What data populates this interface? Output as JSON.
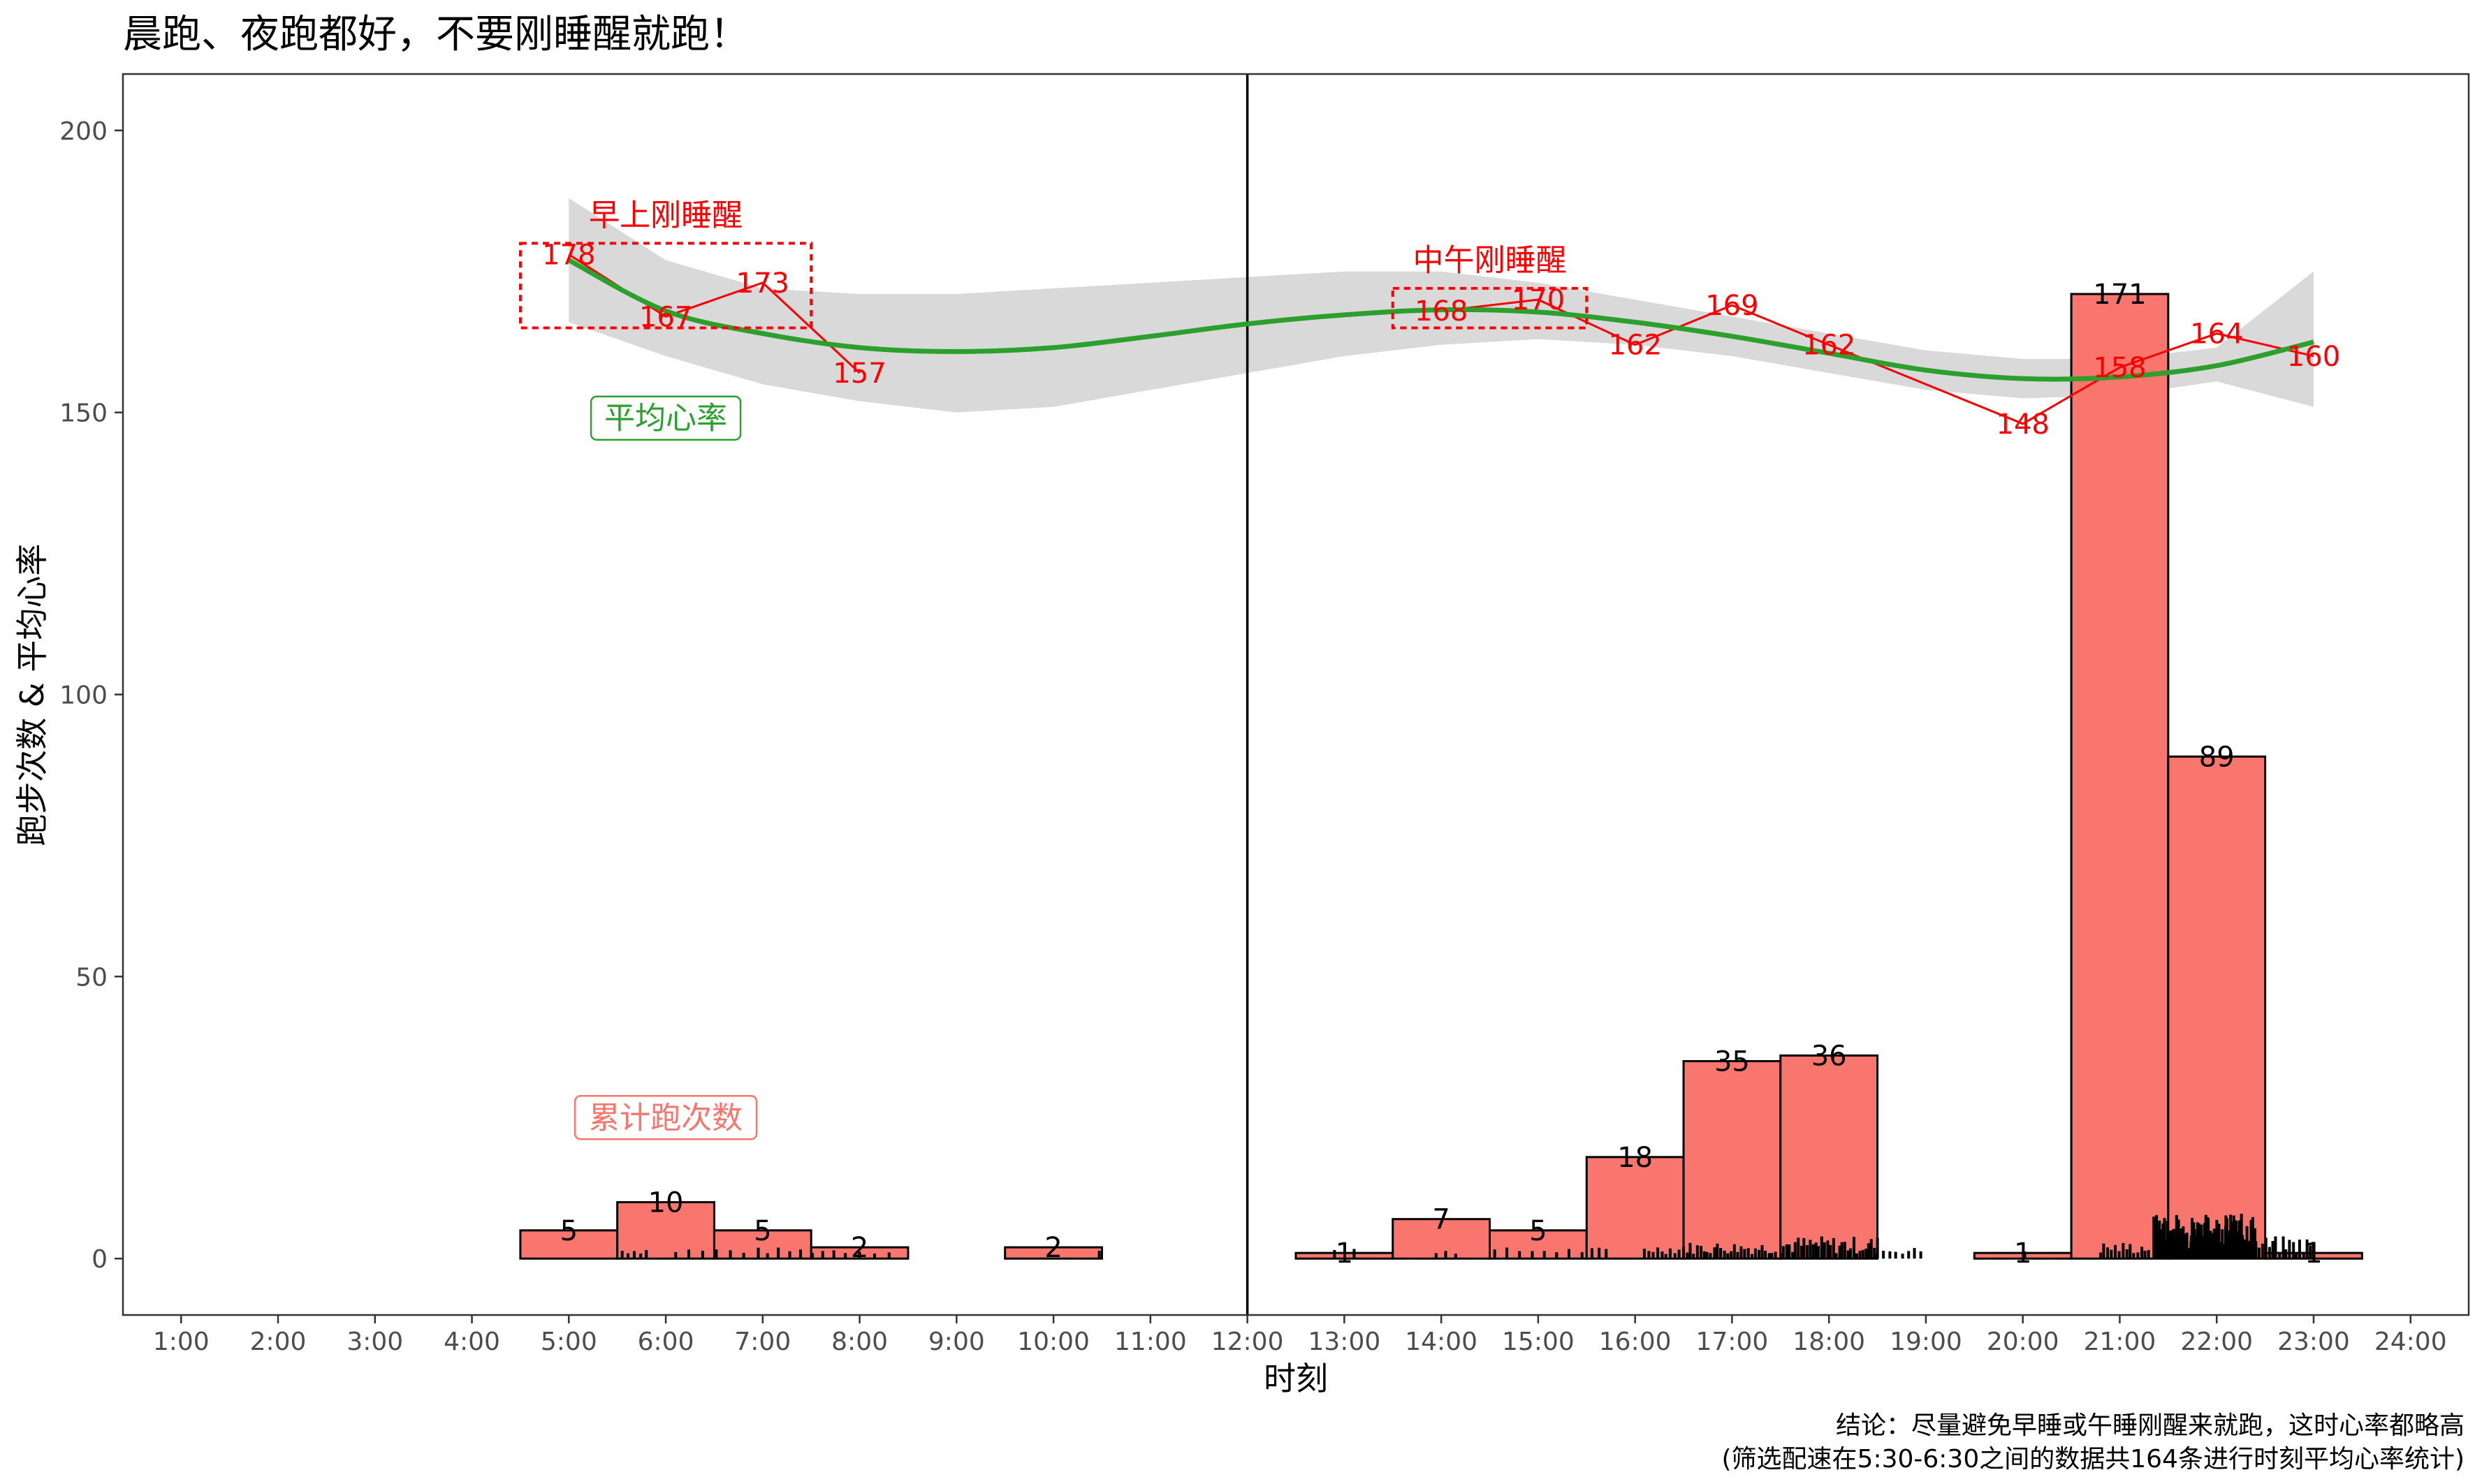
{
  "chart_data": {
    "type": "bar",
    "title": "晨跑、夜跑都好，不要刚睡醒就跑！",
    "xlabel": "时刻",
    "ylabel": "跑步次数 & 平均心率",
    "xlim": [
      0.4,
      24.6
    ],
    "ylim": [
      -10,
      210
    ],
    "x_ticks": [
      {
        "x": 1,
        "label": "1:00"
      },
      {
        "x": 2,
        "label": "2:00"
      },
      {
        "x": 3,
        "label": "3:00"
      },
      {
        "x": 4,
        "label": "4:00"
      },
      {
        "x": 5,
        "label": "5:00"
      },
      {
        "x": 6,
        "label": "6:00"
      },
      {
        "x": 7,
        "label": "7:00"
      },
      {
        "x": 8,
        "label": "8:00"
      },
      {
        "x": 9,
        "label": "9:00"
      },
      {
        "x": 10,
        "label": "10:00"
      },
      {
        "x": 11,
        "label": "11:00"
      },
      {
        "x": 12,
        "label": "12:00"
      },
      {
        "x": 13,
        "label": "13:00"
      },
      {
        "x": 14,
        "label": "14:00"
      },
      {
        "x": 15,
        "label": "15:00"
      },
      {
        "x": 16,
        "label": "16:00"
      },
      {
        "x": 17,
        "label": "17:00"
      },
      {
        "x": 18,
        "label": "18:00"
      },
      {
        "x": 19,
        "label": "19:00"
      },
      {
        "x": 20,
        "label": "20:00"
      },
      {
        "x": 21,
        "label": "21:00"
      },
      {
        "x": 22,
        "label": "22:00"
      },
      {
        "x": 23,
        "label": "23:00"
      },
      {
        "x": 24,
        "label": "24:00"
      }
    ],
    "y_ticks": [
      {
        "y": 0,
        "label": "0"
      },
      {
        "y": 50,
        "label": "50"
      },
      {
        "y": 100,
        "label": "100"
      },
      {
        "y": 150,
        "label": "150"
      },
      {
        "y": 200,
        "label": "200"
      }
    ],
    "grid": false,
    "series": [
      {
        "name": "累计跑次数",
        "type": "bar",
        "color": "#f8766d",
        "bars": [
          {
            "x": 5,
            "value": 5,
            "label": "5"
          },
          {
            "x": 6,
            "value": 10,
            "label": "10"
          },
          {
            "x": 7,
            "value": 5,
            "label": "5"
          },
          {
            "x": 8,
            "value": 2,
            "label": "2"
          },
          {
            "x": 10,
            "value": 2,
            "label": "2"
          },
          {
            "x": 13,
            "value": 1,
            "label": "1"
          },
          {
            "x": 14,
            "value": 7,
            "label": "7"
          },
          {
            "x": 15,
            "value": 5,
            "label": "5"
          },
          {
            "x": 16,
            "value": 18,
            "label": "18"
          },
          {
            "x": 17,
            "value": 35,
            "label": "35"
          },
          {
            "x": 18,
            "value": 36,
            "label": "36"
          },
          {
            "x": 20,
            "value": 1,
            "label": "1"
          },
          {
            "x": 21,
            "value": 171,
            "label": "171"
          },
          {
            "x": 22,
            "value": 89,
            "label": "89"
          },
          {
            "x": 23,
            "value": 1,
            "label": "1"
          }
        ]
      },
      {
        "name": "平均心率",
        "type": "line",
        "color": "#ff0000",
        "points": [
          {
            "x": 5,
            "y": 178,
            "label": "178"
          },
          {
            "x": 6,
            "y": 167,
            "label": "167"
          },
          {
            "x": 7,
            "y": 173,
            "label": "173"
          },
          {
            "x": 8,
            "y": 157,
            "label": "157"
          },
          {
            "x": 14,
            "y": 168,
            "label": "168"
          },
          {
            "x": 15,
            "y": 170,
            "label": "170"
          },
          {
            "x": 16,
            "y": 162,
            "label": "162"
          },
          {
            "x": 17,
            "y": 169,
            "label": "169"
          },
          {
            "x": 18,
            "y": 162,
            "label": "162"
          },
          {
            "x": 20,
            "y": 148,
            "label": "148"
          },
          {
            "x": 21,
            "y": 158,
            "label": "158"
          },
          {
            "x": 22,
            "y": 164,
            "label": "164"
          },
          {
            "x": 23,
            "y": 160,
            "label": "160"
          }
        ]
      },
      {
        "type": "smooth",
        "color": "#2ca02c",
        "band_color": "#d9d9d9",
        "points": [
          {
            "x": 5,
            "y": 177,
            "lo": 166,
            "hi": 188
          },
          {
            "x": 6,
            "y": 168,
            "lo": 160,
            "hi": 177
          },
          {
            "x": 7,
            "y": 164,
            "lo": 155,
            "hi": 172
          },
          {
            "x": 8,
            "y": 161.5,
            "lo": 152,
            "hi": 171
          },
          {
            "x": 9,
            "y": 160.8,
            "lo": 150,
            "hi": 171
          },
          {
            "x": 10,
            "y": 161.5,
            "lo": 151,
            "hi": 172
          },
          {
            "x": 11,
            "y": 163.5,
            "lo": 154,
            "hi": 173
          },
          {
            "x": 12,
            "y": 165.7,
            "lo": 157,
            "hi": 174
          },
          {
            "x": 13,
            "y": 167.3,
            "lo": 160,
            "hi": 175
          },
          {
            "x": 14,
            "y": 168.2,
            "lo": 162,
            "hi": 175
          },
          {
            "x": 15,
            "y": 167.8,
            "lo": 163,
            "hi": 173
          },
          {
            "x": 16,
            "y": 166,
            "lo": 162,
            "hi": 170
          },
          {
            "x": 17,
            "y": 163.5,
            "lo": 160,
            "hi": 167
          },
          {
            "x": 18,
            "y": 160.5,
            "lo": 157,
            "hi": 164
          },
          {
            "x": 19,
            "y": 157.5,
            "lo": 154,
            "hi": 161
          },
          {
            "x": 20,
            "y": 156,
            "lo": 152.5,
            "hi": 159.5
          },
          {
            "x": 21,
            "y": 156.3,
            "lo": 153,
            "hi": 159.5
          },
          {
            "x": 22,
            "y": 158.3,
            "lo": 155.5,
            "hi": 161.5
          },
          {
            "x": 23,
            "y": 162.5,
            "lo": 151,
            "hi": 175
          }
        ]
      }
    ],
    "rug": {
      "segments": [
        {
          "from": 5.55,
          "to": 5.8,
          "count": 5,
          "max_h": 2
        },
        {
          "from": 6.1,
          "to": 6.95,
          "count": 7,
          "max_h": 2
        },
        {
          "from": 7.05,
          "to": 7.85,
          "count": 8,
          "max_h": 2
        },
        {
          "from": 8.0,
          "to": 8.3,
          "count": 3,
          "max_h": 2
        },
        {
          "from": 10.45,
          "to": 10.5,
          "count": 1,
          "max_h": 2
        },
        {
          "from": 12.9,
          "to": 13.1,
          "count": 2,
          "max_h": 2
        },
        {
          "from": 13.95,
          "to": 14.15,
          "count": 3,
          "max_h": 2
        },
        {
          "from": 14.55,
          "to": 15.45,
          "count": 8,
          "max_h": 2
        },
        {
          "from": 15.55,
          "to": 15.7,
          "count": 3,
          "max_h": 2
        },
        {
          "from": 16.1,
          "to": 16.45,
          "count": 9,
          "max_h": 2.5
        },
        {
          "from": 16.5,
          "to": 17.45,
          "count": 28,
          "max_h": 3
        },
        {
          "from": 17.5,
          "to": 18.5,
          "count": 34,
          "max_h": 4
        },
        {
          "from": 18.5,
          "to": 18.95,
          "count": 8,
          "max_h": 2
        },
        {
          "from": 20.0,
          "to": 20.05,
          "count": 1,
          "max_h": 2
        },
        {
          "from": 20.8,
          "to": 21.3,
          "count": 14,
          "max_h": 3
        },
        {
          "from": 21.35,
          "to": 22.4,
          "count": 150,
          "max_h": 8
        },
        {
          "from": 22.4,
          "to": 23.0,
          "count": 18,
          "max_h": 4
        }
      ]
    },
    "annotations": [
      {
        "text": "早上刚睡醒",
        "x": 6,
        "y": 185,
        "style": "red-text"
      },
      {
        "text": "中午刚睡醒",
        "x": 14.5,
        "y": 177,
        "style": "red-text"
      },
      {
        "text": "平均心率",
        "x": 6,
        "y": 149,
        "style": "green-box"
      },
      {
        "text": "累计跑次数",
        "x": 6,
        "y": 25,
        "style": "salmon-box"
      }
    ],
    "highlight_boxes": [
      {
        "x0": 4.5,
        "x1": 7.5,
        "y0": 165,
        "y1": 180
      },
      {
        "x0": 13.5,
        "x1": 15.5,
        "y0": 165,
        "y1": 172
      }
    ],
    "vline_x": 12,
    "caption": [
      "结论：尽量避免早睡或午睡刚醒来就跑，这时心率都略高",
      "(筛选配速在5:30-6:30之间的数据共164条进行时刻平均心率统计)"
    ]
  }
}
